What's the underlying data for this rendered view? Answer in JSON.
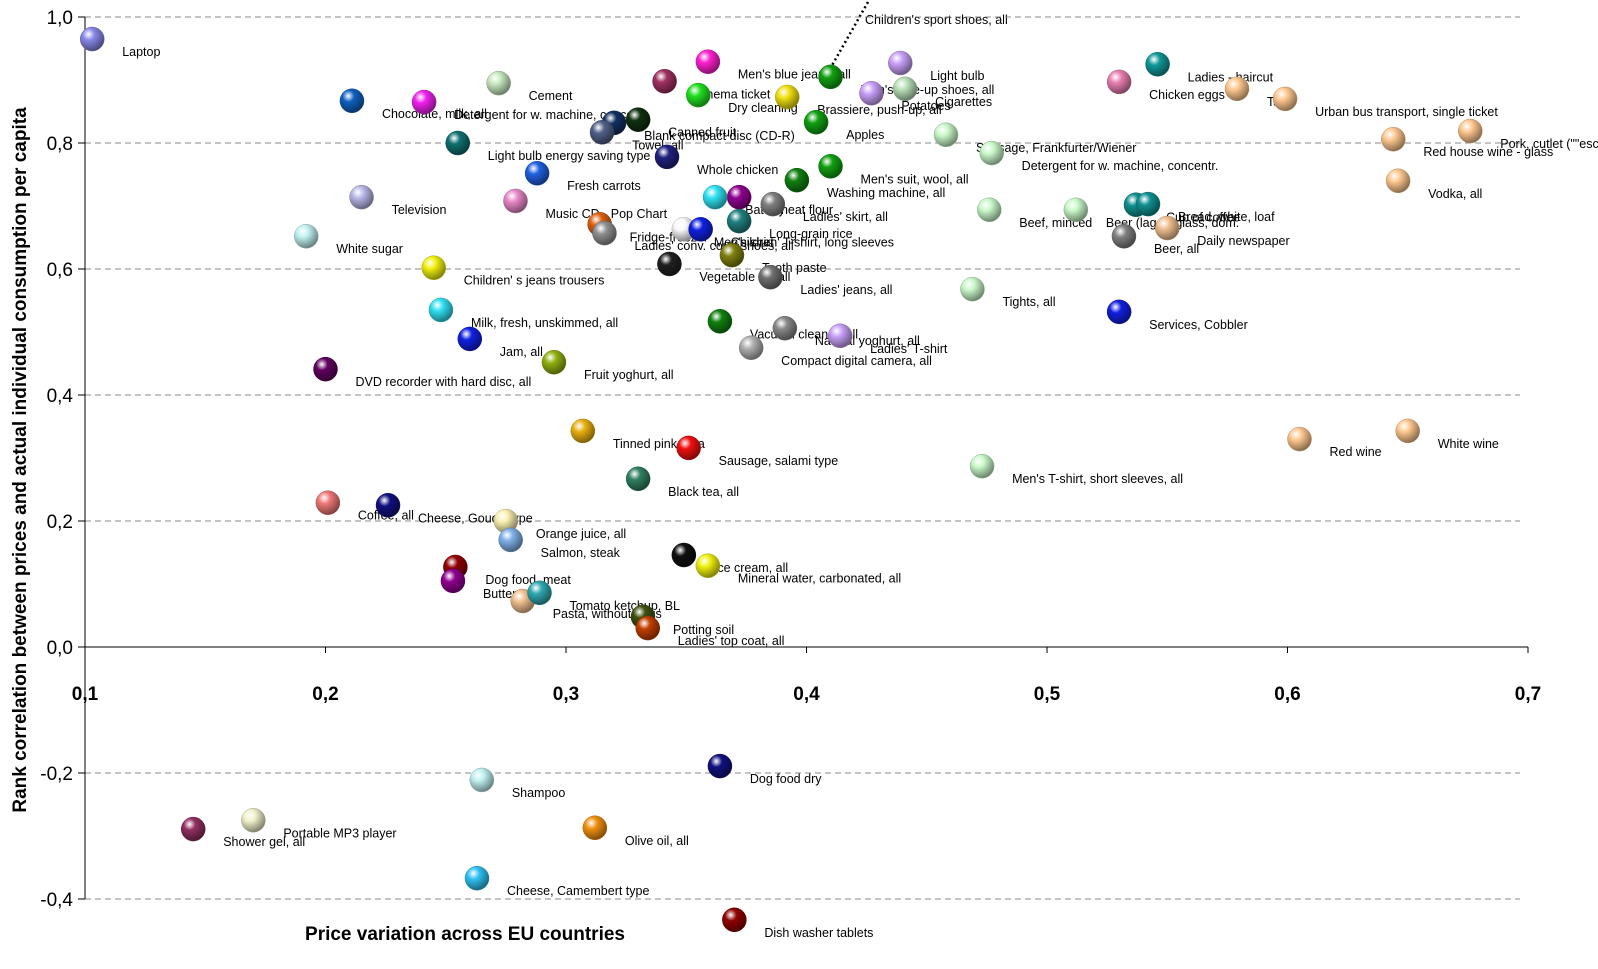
{
  "chart_data": {
    "type": "scatter",
    "x_label": "Price variation across EU countries",
    "y_label": "Rank correlation between prices and actual individual consumption  per capita",
    "annotation": "Children's sport shoes, all",
    "xlim": [
      0.1,
      0.7
    ],
    "ylim": [
      -0.45,
      1.0
    ],
    "xticks": [
      {
        "value": 0.1,
        "label": "0,1"
      },
      {
        "value": 0.2,
        "label": "0,2"
      },
      {
        "value": 0.3,
        "label": "0,3"
      },
      {
        "value": 0.4,
        "label": "0,4"
      },
      {
        "value": 0.5,
        "label": "0,5"
      },
      {
        "value": 0.6,
        "label": "0,6"
      },
      {
        "value": 0.7,
        "label": "0,7"
      }
    ],
    "yticks": [
      {
        "value": -0.4,
        "label": "-0,4"
      },
      {
        "value": -0.2,
        "label": "-0,2"
      },
      {
        "value": 0,
        "label": "0,0"
      },
      {
        "value": 0.2,
        "label": "0,2"
      },
      {
        "value": 0.4,
        "label": "0,4"
      },
      {
        "value": 0.6,
        "label": "0,6"
      },
      {
        "value": 0.8,
        "label": "0,8"
      },
      {
        "value": 1.0,
        "label": "1,0"
      }
    ],
    "grid": true,
    "points": [
      {
        "label": "Laptop",
        "x": 0.103,
        "y": 0.965,
        "color": "#8888e8"
      },
      {
        "label": "Cement",
        "x": 0.272,
        "y": 0.895,
        "color": "#c8e8c0"
      },
      {
        "label": "Men's blue jeans, all",
        "x": 0.359,
        "y": 0.929,
        "color": "#ff20d0"
      },
      {
        "label": "Light bulb",
        "x": 0.439,
        "y": 0.927,
        "color": "#c8a0f8"
      },
      {
        "label": "Men's lace-up shoes, all",
        "x": 0.41,
        "y": 0.905,
        "color": "#10a010"
      },
      {
        "label": "Ladies - haircut",
        "x": 0.546,
        "y": 0.925,
        "color": "#109898"
      },
      {
        "label": "Chicken eggs",
        "x": 0.53,
        "y": 0.897,
        "color": "#e880b0"
      },
      {
        "label": "Taxi",
        "x": 0.579,
        "y": 0.886,
        "color": "#ffc890"
      },
      {
        "label": "Urban bus transport, single ticket",
        "x": 0.599,
        "y": 0.87,
        "color": "#ffc890"
      },
      {
        "label": "Cinema ticket",
        "x": 0.341,
        "y": 0.898,
        "color": "#a03060"
      },
      {
        "label": "Dry cleaning",
        "x": 0.355,
        "y": 0.876,
        "color": "#20e020"
      },
      {
        "label": "Cigarettes",
        "x": 0.441,
        "y": 0.886,
        "color": "#b8e0b8"
      },
      {
        "label": "Potatoes",
        "x": 0.427,
        "y": 0.879,
        "color": "#c8a0f8"
      },
      {
        "label": "Chocolate, milk, all",
        "x": 0.211,
        "y": 0.867,
        "color": "#1060c0"
      },
      {
        "label": "Detergent for w. machine, concentr.",
        "x": 0.241,
        "y": 0.865,
        "color": "#f020f0"
      },
      {
        "label": "Brassiere, push-up, all",
        "x": 0.392,
        "y": 0.873,
        "color": "#f0e010"
      },
      {
        "label": "Canned fruit",
        "x": 0.33,
        "y": 0.837,
        "color": "#103010"
      },
      {
        "label": "Blank compact disc (CD-R)",
        "x": 0.32,
        "y": 0.832,
        "color": "#103060"
      },
      {
        "label": "Towel, all",
        "x": 0.315,
        "y": 0.817,
        "color": "#506088"
      },
      {
        "label": "Apples",
        "x": 0.404,
        "y": 0.833,
        "color": "#10a010"
      },
      {
        "label": "Whole chicken",
        "x": 0.342,
        "y": 0.778,
        "color": "#202080"
      },
      {
        "label": "Red house wine - glass",
        "x": 0.644,
        "y": 0.806,
        "color": "#ffc890"
      },
      {
        "label": "Pork, cutlet (\"\"escalope\")",
        "x": 0.676,
        "y": 0.819,
        "color": "#ffc890"
      },
      {
        "label": "Light bulb energy saving type",
        "x": 0.255,
        "y": 0.8,
        "color": "#107070"
      },
      {
        "label": "Sausage, Frankfurter/Wiener",
        "x": 0.458,
        "y": 0.813,
        "color": "#c8f8c8"
      },
      {
        "label": "Detergent for w. machine, concentr.",
        "x": 0.477,
        "y": 0.784,
        "color": "#c8f8c8"
      },
      {
        "label": "Men's suit, wool, all",
        "x": 0.41,
        "y": 0.763,
        "color": "#10a010"
      },
      {
        "label": "Washing machine, all",
        "x": 0.396,
        "y": 0.741,
        "color": "#108010"
      },
      {
        "label": "Fresh carrots",
        "x": 0.288,
        "y": 0.752,
        "color": "#2060e0"
      },
      {
        "label": "Wheat flour",
        "x": 0.372,
        "y": 0.714,
        "color": "#900090"
      },
      {
        "label": "Battery",
        "x": 0.362,
        "y": 0.714,
        "color": "#30e0f0"
      },
      {
        "label": "Ladies' skirt, all",
        "x": 0.386,
        "y": 0.703,
        "color": "#808080"
      },
      {
        "label": "Long-grain rice",
        "x": 0.372,
        "y": 0.676,
        "color": "#208080"
      },
      {
        "label": "Television",
        "x": 0.215,
        "y": 0.714,
        "color": "#b8b8e8"
      },
      {
        "label": "White sugar",
        "x": 0.192,
        "y": 0.652,
        "color": "#c0f0f0"
      },
      {
        "label": "Music CD - Pop Chart",
        "x": 0.279,
        "y": 0.708,
        "color": "#e888c8"
      },
      {
        "label": "Fridge-freezer",
        "x": 0.314,
        "y": 0.671,
        "color": "#e06010"
      },
      {
        "label": "Ladies' conv. court shoes, all",
        "x": 0.316,
        "y": 0.657,
        "color": "#909090"
      },
      {
        "label": "Vodka, all",
        "x": 0.646,
        "y": 0.74,
        "color": "#ffc890"
      },
      {
        "label": "Men's shirt",
        "x": 0.349,
        "y": 0.663,
        "color": "#f8f8f8"
      },
      {
        "label": "Children' T-shirt, long sleeves",
        "x": 0.356,
        "y": 0.663,
        "color": "#1020e0"
      },
      {
        "label": "Beef, minced",
        "x": 0.476,
        "y": 0.694,
        "color": "#c8f8c8"
      },
      {
        "label": "Beer (lager) glass, dom.",
        "x": 0.512,
        "y": 0.694,
        "color": "#c8f8c8"
      },
      {
        "label": "Cup of coffee",
        "x": 0.537,
        "y": 0.702,
        "color": "#109090"
      },
      {
        "label": "Bread, white, loaf",
        "x": 0.542,
        "y": 0.703,
        "color": "#109090"
      },
      {
        "label": "Daily newspaper",
        "x": 0.55,
        "y": 0.665,
        "color": "#f0c090"
      },
      {
        "label": "Beer, all",
        "x": 0.532,
        "y": 0.652,
        "color": "#808080"
      },
      {
        "label": "Tooth paste",
        "x": 0.369,
        "y": 0.622,
        "color": "#808010"
      },
      {
        "label": "Children' s jeans trousers",
        "x": 0.245,
        "y": 0.602,
        "color": "#f0f010"
      },
      {
        "label": "Vegetable oil, all",
        "x": 0.343,
        "y": 0.608,
        "color": "#202020"
      },
      {
        "label": "Ladies' jeans, all",
        "x": 0.385,
        "y": 0.587,
        "color": "#707070"
      },
      {
        "label": "Tights, all",
        "x": 0.469,
        "y": 0.568,
        "color": "#c8f8c8"
      },
      {
        "label": "Milk, fresh, unskimmed, all",
        "x": 0.248,
        "y": 0.535,
        "color": "#30e0f0"
      },
      {
        "label": "Services, Cobbler",
        "x": 0.53,
        "y": 0.532,
        "color": "#1020e0"
      },
      {
        "label": "Vacuum cleaner, all",
        "x": 0.364,
        "y": 0.517,
        "color": "#108010"
      },
      {
        "label": "Natural yoghurt, all",
        "x": 0.391,
        "y": 0.506,
        "color": "#888888"
      },
      {
        "label": "Ladies' T-shirt",
        "x": 0.414,
        "y": 0.494,
        "color": "#c8a0f8"
      },
      {
        "label": "Jam, all",
        "x": 0.26,
        "y": 0.489,
        "color": "#1020e0"
      },
      {
        "label": "Compact digital camera, all",
        "x": 0.377,
        "y": 0.475,
        "color": "#b0b0b0"
      },
      {
        "label": "Fruit yoghurt, all",
        "x": 0.295,
        "y": 0.452,
        "color": "#90b010"
      },
      {
        "label": "DVD recorder with hard disc, all",
        "x": 0.2,
        "y": 0.441,
        "color": "#600060"
      },
      {
        "label": "Tinned pink tuna",
        "x": 0.307,
        "y": 0.343,
        "color": "#e8b010"
      },
      {
        "label": "Sausage, salami type",
        "x": 0.351,
        "y": 0.316,
        "color": "#f01010"
      },
      {
        "label": "White wine",
        "x": 0.65,
        "y": 0.343,
        "color": "#ffc890"
      },
      {
        "label": "Red wine",
        "x": 0.605,
        "y": 0.33,
        "color": "#ffc890"
      },
      {
        "label": "Men's T-shirt, short sleeves, all",
        "x": 0.473,
        "y": 0.287,
        "color": "#c8f8c8"
      },
      {
        "label": "Black tea, all",
        "x": 0.33,
        "y": 0.267,
        "color": "#308060"
      },
      {
        "label": "Coffee, all",
        "x": 0.201,
        "y": 0.229,
        "color": "#f07878"
      },
      {
        "label": "Cheese, Gouda type",
        "x": 0.226,
        "y": 0.225,
        "color": "#101080"
      },
      {
        "label": "Orange juice, all",
        "x": 0.275,
        "y": 0.2,
        "color": "#f8f0b0"
      },
      {
        "label": "Salmon, steak",
        "x": 0.277,
        "y": 0.17,
        "color": "#80b0e8"
      },
      {
        "label": "Ice cream, all",
        "x": 0.349,
        "y": 0.146,
        "color": "#101010"
      },
      {
        "label": "Mineral water, carbonated, all",
        "x": 0.359,
        "y": 0.129,
        "color": "#f0f010"
      },
      {
        "label": "Dog food, meat",
        "x": 0.254,
        "y": 0.127,
        "color": "#900000"
      },
      {
        "label": "Butter, all",
        "x": 0.253,
        "y": 0.105,
        "color": "#900090"
      },
      {
        "label": "Pasta, without eggs",
        "x": 0.282,
        "y": 0.073,
        "color": "#f0c090"
      },
      {
        "label": "Tomato ketchup, BL",
        "x": 0.289,
        "y": 0.086,
        "color": "#30a8b0"
      },
      {
        "label": "Potting soil",
        "x": 0.332,
        "y": 0.048,
        "color": "#405010"
      },
      {
        "label": "Ladies' top coat, all",
        "x": 0.334,
        "y": 0.03,
        "color": "#c04000"
      },
      {
        "label": "Dog food dry",
        "x": 0.364,
        "y": -0.189,
        "color": "#101080"
      },
      {
        "label": "Shampoo",
        "x": 0.265,
        "y": -0.211,
        "color": "#c0f0f0"
      },
      {
        "label": "Portable MP3 player",
        "x": 0.17,
        "y": -0.275,
        "color": "#f0f0c8"
      },
      {
        "label": "Shower gel, all",
        "x": 0.145,
        "y": -0.289,
        "color": "#903060"
      },
      {
        "label": "Olive oil, all",
        "x": 0.312,
        "y": -0.287,
        "color": "#f09010"
      },
      {
        "label": "Cheese, Camembert type",
        "x": 0.263,
        "y": -0.367,
        "color": "#30c0f0"
      },
      {
        "label": "Dish washer tablets",
        "x": 0.37,
        "y": -0.433,
        "color": "#900000"
      }
    ]
  }
}
